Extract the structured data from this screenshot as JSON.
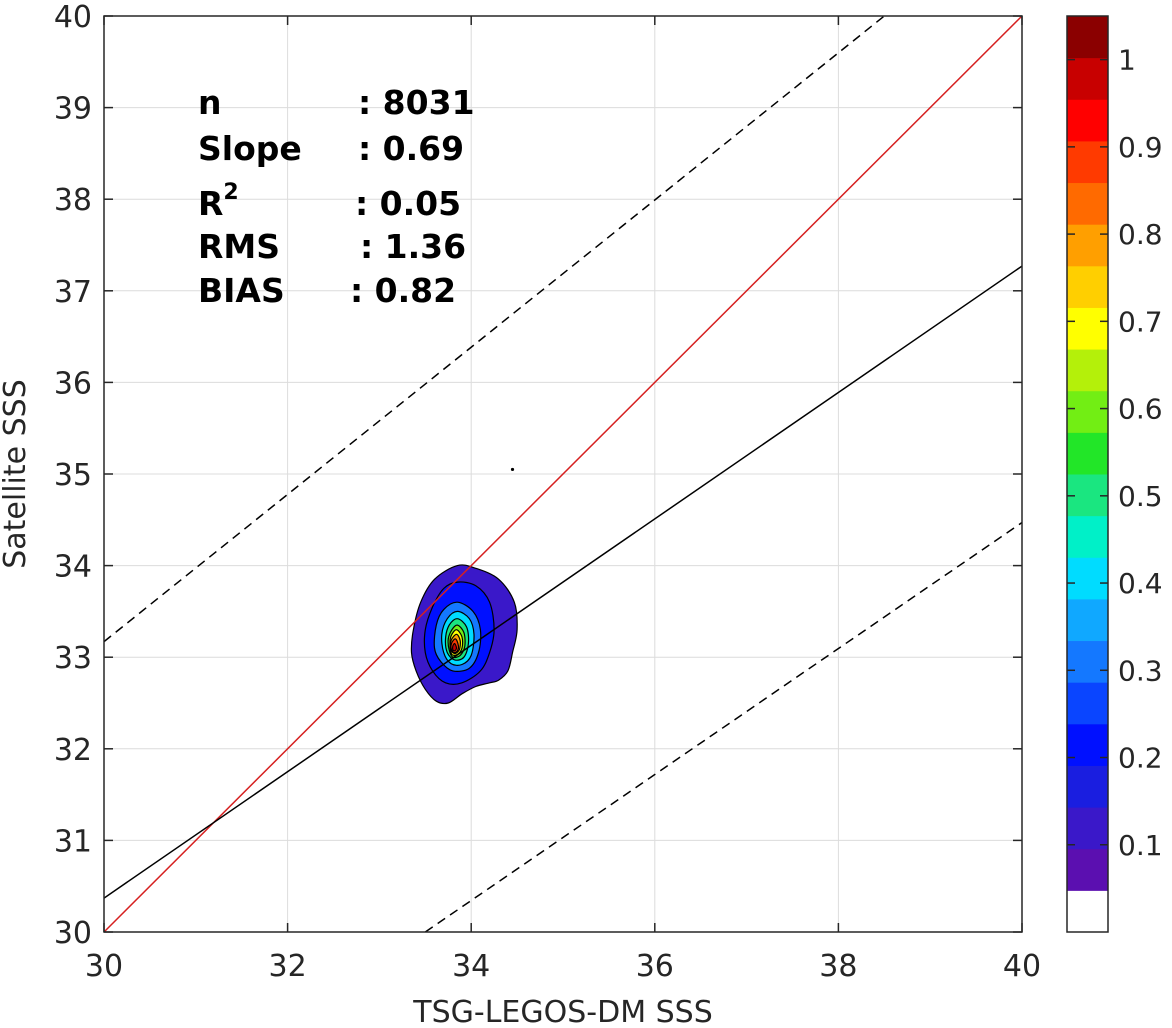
{
  "chart_data": {
    "type": "contour",
    "xlabel": "TSG-LEGOS-DM SSS",
    "ylabel": "Satellite SSS",
    "xlim": [
      30,
      40
    ],
    "ylim": [
      30,
      40
    ],
    "xticks": [
      "30",
      "32",
      "34",
      "36",
      "38",
      "40"
    ],
    "yticks": [
      "30",
      "31",
      "32",
      "33",
      "34",
      "35",
      "36",
      "37",
      "38",
      "39",
      "40"
    ],
    "grid": true,
    "stats": [
      {
        "label": "n",
        "value": ": 8031"
      },
      {
        "label": "Slope",
        "value": ": 0.69"
      },
      {
        "label": "R",
        "sup": "2",
        "value": ": 0.05"
      },
      {
        "label": "RMS",
        "value": ": 1.36"
      },
      {
        "label": "BIAS",
        "value": ": 0.82"
      }
    ],
    "lines": [
      {
        "name": "identity",
        "color": "#d62020",
        "style": "solid",
        "x": [
          30,
          40
        ],
        "y": [
          30,
          40
        ]
      },
      {
        "name": "fit",
        "color": "#000000",
        "style": "solid",
        "x": [
          30,
          40
        ],
        "y": [
          30.37,
          37.27
        ]
      },
      {
        "name": "upper-bound",
        "color": "#000000",
        "style": "dashed",
        "x": [
          30,
          38.5
        ],
        "y": [
          33.17,
          40
        ]
      },
      {
        "name": "lower-bound",
        "color": "#000000",
        "style": "dashed",
        "x": [
          33.5,
          40
        ],
        "y": [
          30,
          34.47
        ]
      }
    ],
    "density_peak": {
      "x": 33.8,
      "y": 33.1
    },
    "stray_point": {
      "x": 34.45,
      "y": 35.05
    },
    "contours": [
      {
        "level": 0.05,
        "points": [
          [
            33.85,
            34.0
          ],
          [
            34.05,
            33.97
          ],
          [
            34.3,
            33.85
          ],
          [
            34.47,
            33.6
          ],
          [
            34.5,
            33.3
          ],
          [
            34.45,
            33.05
          ],
          [
            34.4,
            32.85
          ],
          [
            34.3,
            32.75
          ],
          [
            34.2,
            32.72
          ],
          [
            34.05,
            32.68
          ],
          [
            33.9,
            32.6
          ],
          [
            33.75,
            32.5
          ],
          [
            33.62,
            32.52
          ],
          [
            33.5,
            32.65
          ],
          [
            33.4,
            32.85
          ],
          [
            33.35,
            33.05
          ],
          [
            33.37,
            33.3
          ],
          [
            33.45,
            33.6
          ],
          [
            33.6,
            33.85
          ]
        ]
      },
      {
        "level": 0.15,
        "points": [
          [
            33.85,
            33.82
          ],
          [
            34.05,
            33.78
          ],
          [
            34.2,
            33.6
          ],
          [
            34.25,
            33.3
          ],
          [
            34.2,
            33.05
          ],
          [
            34.1,
            32.85
          ],
          [
            33.9,
            32.72
          ],
          [
            33.72,
            32.72
          ],
          [
            33.58,
            32.85
          ],
          [
            33.5,
            33.05
          ],
          [
            33.5,
            33.3
          ],
          [
            33.58,
            33.55
          ],
          [
            33.7,
            33.75
          ]
        ]
      },
      {
        "level": 0.25,
        "points": [
          [
            33.85,
            33.6
          ],
          [
            34.02,
            33.5
          ],
          [
            34.1,
            33.3
          ],
          [
            34.08,
            33.05
          ],
          [
            33.98,
            32.88
          ],
          [
            33.8,
            32.85
          ],
          [
            33.67,
            32.95
          ],
          [
            33.6,
            33.1
          ],
          [
            33.62,
            33.35
          ],
          [
            33.7,
            33.52
          ]
        ]
      },
      {
        "level": 0.35,
        "points": [
          [
            33.85,
            33.5
          ],
          [
            33.98,
            33.42
          ],
          [
            34.03,
            33.25
          ],
          [
            34.0,
            33.02
          ],
          [
            33.9,
            32.92
          ],
          [
            33.78,
            32.93
          ],
          [
            33.7,
            33.05
          ],
          [
            33.68,
            33.25
          ],
          [
            33.74,
            33.42
          ]
        ]
      },
      {
        "level": 0.45,
        "points": [
          [
            33.85,
            33.42
          ],
          [
            33.95,
            33.33
          ],
          [
            33.97,
            33.15
          ],
          [
            33.92,
            33.0
          ],
          [
            33.82,
            32.97
          ],
          [
            33.74,
            33.05
          ],
          [
            33.72,
            33.2
          ],
          [
            33.76,
            33.35
          ]
        ]
      },
      {
        "level": 0.55,
        "points": [
          [
            33.85,
            33.35
          ],
          [
            33.92,
            33.27
          ],
          [
            33.93,
            33.12
          ],
          [
            33.88,
            33.02
          ],
          [
            33.8,
            33.0
          ],
          [
            33.76,
            33.08
          ],
          [
            33.75,
            33.2
          ],
          [
            33.79,
            33.3
          ]
        ]
      },
      {
        "level": 0.65,
        "points": [
          [
            33.84,
            33.3
          ],
          [
            33.9,
            33.22
          ],
          [
            33.9,
            33.1
          ],
          [
            33.85,
            33.03
          ],
          [
            33.79,
            33.03
          ],
          [
            33.77,
            33.12
          ],
          [
            33.78,
            33.23
          ]
        ]
      },
      {
        "level": 0.75,
        "points": [
          [
            33.84,
            33.25
          ],
          [
            33.88,
            33.18
          ],
          [
            33.87,
            33.08
          ],
          [
            33.82,
            33.04
          ],
          [
            33.78,
            33.08
          ],
          [
            33.78,
            33.18
          ]
        ]
      },
      {
        "level": 0.85,
        "points": [
          [
            33.83,
            33.2
          ],
          [
            33.86,
            33.13
          ],
          [
            33.85,
            33.07
          ],
          [
            33.81,
            33.05
          ],
          [
            33.78,
            33.1
          ],
          [
            33.79,
            33.16
          ]
        ]
      },
      {
        "level": 0.95,
        "points": [
          [
            33.82,
            33.15
          ],
          [
            33.84,
            33.1
          ],
          [
            33.82,
            33.07
          ],
          [
            33.8,
            33.08
          ],
          [
            33.8,
            33.12
          ]
        ]
      }
    ],
    "colorbar": {
      "ticks": [
        "0.1",
        "0.2",
        "0.3",
        "0.4",
        "0.5",
        "0.6",
        "0.7",
        "0.8",
        "0.9",
        "1"
      ],
      "levels": [
        0.0,
        0.05,
        0.1,
        0.15,
        0.2,
        0.25,
        0.3,
        0.35,
        0.4,
        0.45,
        0.5,
        0.55,
        0.6,
        0.65,
        0.7,
        0.75,
        0.8,
        0.85,
        0.9,
        0.95
      ],
      "colors": [
        "#ffffff",
        "#5b0fb0",
        "#3a18c9",
        "#1a1ee0",
        "#0010ff",
        "#0a45ff",
        "#1478ff",
        "#10a8ff",
        "#00dcff",
        "#00f0c8",
        "#1ae680",
        "#22e628",
        "#72ee14",
        "#b4f00a",
        "#ffff00",
        "#ffcf00",
        "#ff9f00",
        "#ff6a00",
        "#ff3a00",
        "#ff0000",
        "#c80000",
        "#8b0000"
      ]
    }
  }
}
